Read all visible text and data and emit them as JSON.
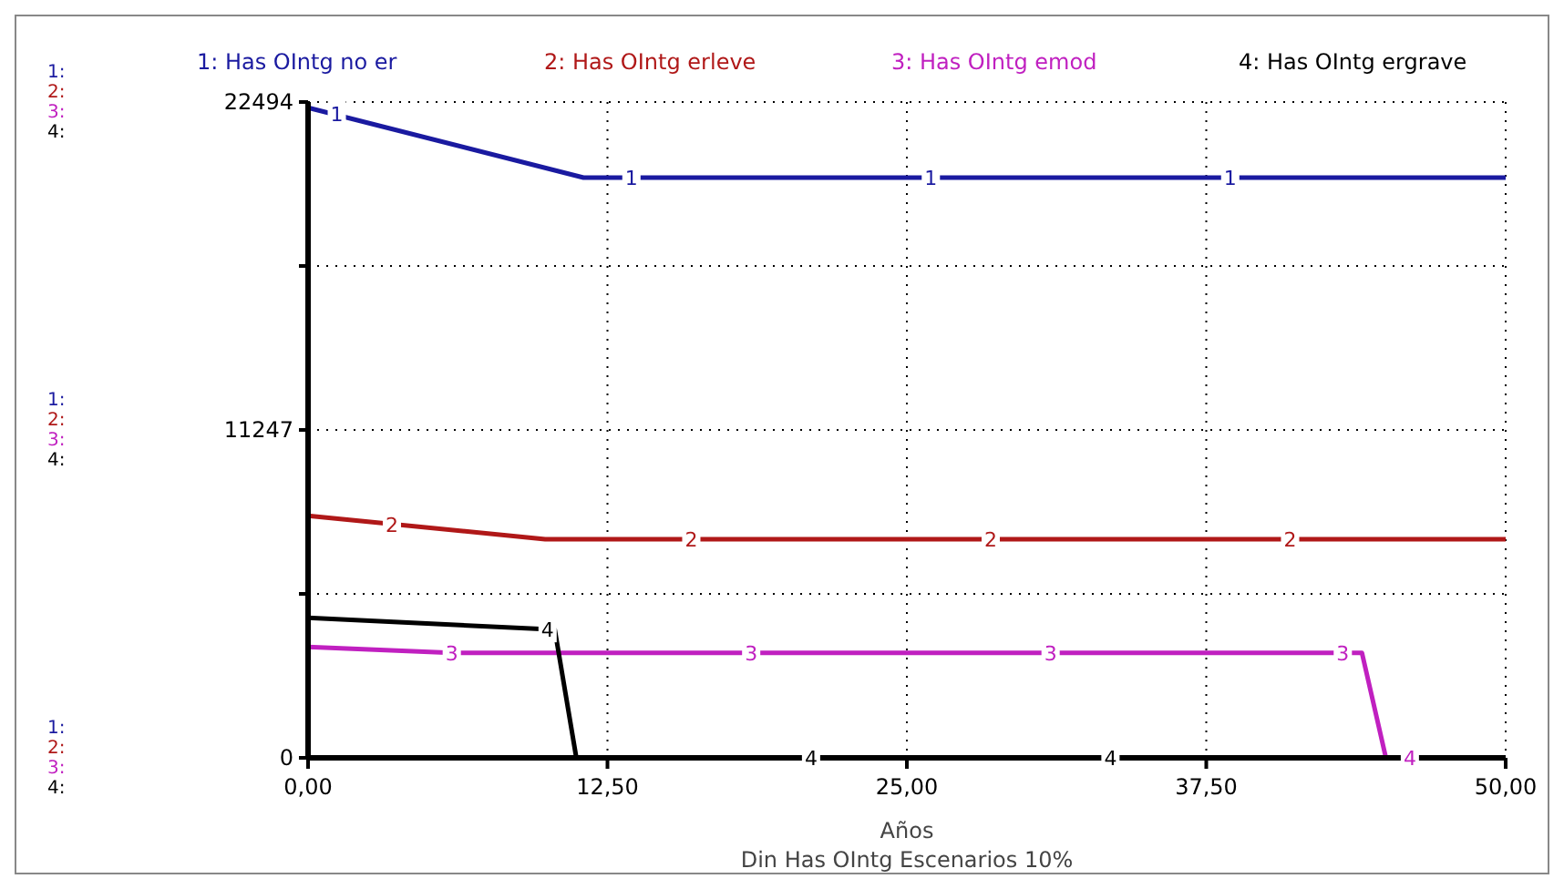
{
  "chart_data": {
    "type": "line",
    "title": "Din Has OIntg Escenarios 10%",
    "xlabel": "Años",
    "legend": "top",
    "xlim": [
      0,
      50
    ],
    "xticks": [
      {
        "value": 0,
        "label": "0,00"
      },
      {
        "value": 12.5,
        "label": "12,50"
      },
      {
        "value": 25,
        "label": "25,00"
      },
      {
        "value": 37.5,
        "label": "37,50"
      },
      {
        "value": 50,
        "label": "50,00"
      }
    ],
    "ylim": [
      0,
      22494
    ],
    "yticks": [
      0,
      {
        "value": 5623.5,
        "label": null
      },
      11247,
      {
        "value": 16870.5,
        "label": null
      },
      22494
    ],
    "grid": true,
    "line_style": "solid",
    "series": [
      {
        "name": "1: Has OIntg no er",
        "color": "#1a1aa0",
        "x": [
          0,
          11.5,
          50
        ],
        "values": [
          22300,
          19900,
          19900
        ]
      },
      {
        "name": "2: Has OIntg erleve",
        "color": "#b01818",
        "x": [
          0,
          9.9,
          50
        ],
        "values": [
          8300,
          7500,
          7500
        ]
      },
      {
        "name": "3: Has OIntg emod",
        "color": "#c020c0",
        "x": [
          0,
          6,
          44,
          45,
          50
        ],
        "values": [
          3800,
          3600,
          3600,
          0,
          0
        ]
      },
      {
        "name": "4: Has OIntg ergrave",
        "color": "#000000",
        "x": [
          0,
          10.3,
          11.2,
          50
        ],
        "values": [
          4800,
          4400,
          0,
          0
        ]
      }
    ],
    "annotations": [
      "1:",
      "2:",
      "3:",
      "4:",
      "1:",
      "2:",
      "3:",
      "4:",
      "1:",
      "2:",
      "3:",
      "4:",
      {
        "text": "1",
        "x": 1.2,
        "y": 22100
      },
      {
        "text": "1",
        "x": 13.5,
        "y": 19900
      },
      {
        "text": "1",
        "x": 26,
        "y": 19900
      },
      {
        "text": "1",
        "x": 38.5,
        "y": 19900
      },
      {
        "text": "2",
        "x": 3.5,
        "y": 8000
      },
      {
        "text": "2",
        "x": 16,
        "y": 7500
      },
      {
        "text": "2",
        "x": 28.5,
        "y": 7500
      },
      {
        "text": "2",
        "x": 41,
        "y": 7500
      },
      {
        "text": "3",
        "x": 6,
        "y": 3600
      },
      {
        "text": "3",
        "x": 18.5,
        "y": 3600
      },
      {
        "text": "3",
        "x": 31,
        "y": 3600
      },
      {
        "text": "3",
        "x": 43.2,
        "y": 3600
      },
      {
        "text": "4",
        "x": 10,
        "y": 4400
      },
      {
        "text": "4",
        "x": 21,
        "y": 0
      },
      {
        "text": "4",
        "x": 33.5,
        "y": 0
      },
      {
        "text": "4",
        "x": 46,
        "y": 0
      }
    ]
  }
}
